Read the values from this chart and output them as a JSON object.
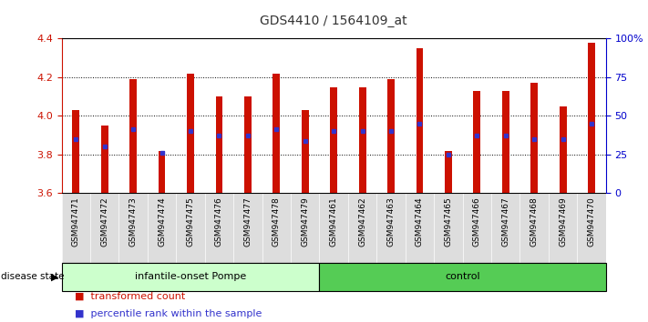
{
  "title": "GDS4410 / 1564109_at",
  "samples": [
    "GSM947471",
    "GSM947472",
    "GSM947473",
    "GSM947474",
    "GSM947475",
    "GSM947476",
    "GSM947477",
    "GSM947478",
    "GSM947479",
    "GSM947461",
    "GSM947462",
    "GSM947463",
    "GSM947464",
    "GSM947465",
    "GSM947466",
    "GSM947467",
    "GSM947468",
    "GSM947469",
    "GSM947470"
  ],
  "bar_tops": [
    4.03,
    3.95,
    4.19,
    3.82,
    4.22,
    4.1,
    4.1,
    4.22,
    4.03,
    4.15,
    4.15,
    4.19,
    4.35,
    3.82,
    4.13,
    4.13,
    4.17,
    4.05,
    4.38
  ],
  "blue_dot_y": [
    3.88,
    3.84,
    3.93,
    3.81,
    3.92,
    3.9,
    3.9,
    3.93,
    3.87,
    3.92,
    3.92,
    3.92,
    3.96,
    3.8,
    3.9,
    3.9,
    3.88,
    3.88,
    3.96
  ],
  "bar_color": "#cc1100",
  "blue_color": "#3333cc",
  "ylim_left": [
    3.6,
    4.4
  ],
  "ylim_right": [
    0,
    100
  ],
  "yticks_left": [
    3.6,
    3.8,
    4.0,
    4.2,
    4.4
  ],
  "yticks_right": [
    0,
    25,
    50,
    75,
    100
  ],
  "ytick_labels_right": [
    "0",
    "25",
    "50",
    "75",
    "100%"
  ],
  "group1_label": "infantile-onset Pompe",
  "group2_label": "control",
  "group1_count": 9,
  "group2_count": 10,
  "group1_color": "#ccffcc",
  "group2_color": "#55cc55",
  "disease_state_label": "disease state",
  "legend1": "transformed count",
  "legend2": "percentile rank within the sample",
  "bar_width": 0.25,
  "background_color": "#ffffff",
  "plot_bg_color": "#ffffff",
  "title_color": "#333333",
  "left_axis_color": "#cc1100",
  "right_axis_color": "#0000cc",
  "xtick_bg_color": "#dddddd",
  "gridline_ticks": [
    3.8,
    4.0,
    4.2
  ]
}
